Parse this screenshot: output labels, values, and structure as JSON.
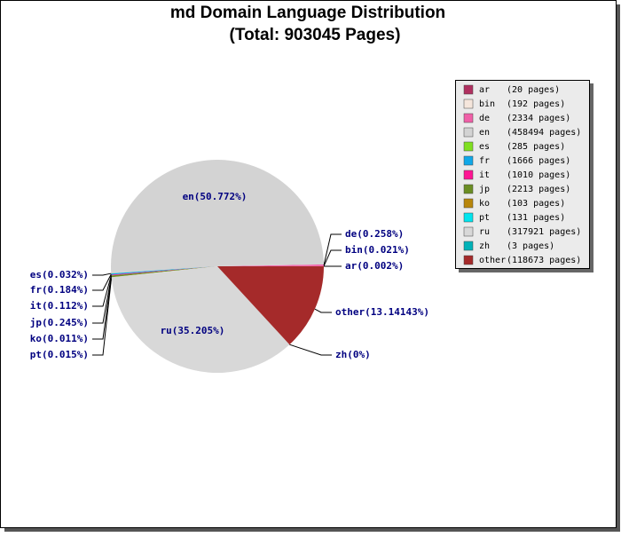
{
  "chart_data": {
    "type": "pie",
    "title": "md Domain Language Distribution",
    "subtitle": "(Total: 903045 Pages)",
    "categories": [
      "ar",
      "bin",
      "de",
      "en",
      "es",
      "fr",
      "it",
      "jp",
      "ko",
      "pt",
      "ru",
      "zh",
      "other"
    ],
    "values": [
      20,
      192,
      2334,
      458494,
      285,
      1666,
      1010,
      2213,
      103,
      131,
      317921,
      3,
      118673
    ],
    "value_labels": [
      "ar(0.002%)",
      "bin(0.021%)",
      "de(0.258%)",
      "en(50.772%)",
      "es(0.032%)",
      "fr(0.184%)",
      "it(0.112%)",
      "jp(0.245%)",
      "ko(0.011%)",
      "pt(0.015%)",
      "ru(35.205%)",
      "zh(0%)",
      "other(13.14143%)"
    ],
    "legend_labels": [
      "(20 pages)",
      "(192 pages)",
      "(2334 pages)",
      "(458494 pages)",
      "(285 pages)",
      "(1666 pages)",
      "(1010 pages)",
      "(2213 pages)",
      "(103 pages)",
      "(131 pages)",
      "(317921 pages)",
      "(3 pages)",
      "(118673 pages)"
    ],
    "colors": [
      "#b03060",
      "#f5e6dc",
      "#f060a8",
      "#d3d3d3",
      "#80e020",
      "#10a8e8",
      "#ff1493",
      "#6b8e23",
      "#b8860b",
      "#00e5ee",
      "#d8d8d8",
      "#00b2b8",
      "#a52a2a"
    ],
    "legend_position": "upper right"
  }
}
